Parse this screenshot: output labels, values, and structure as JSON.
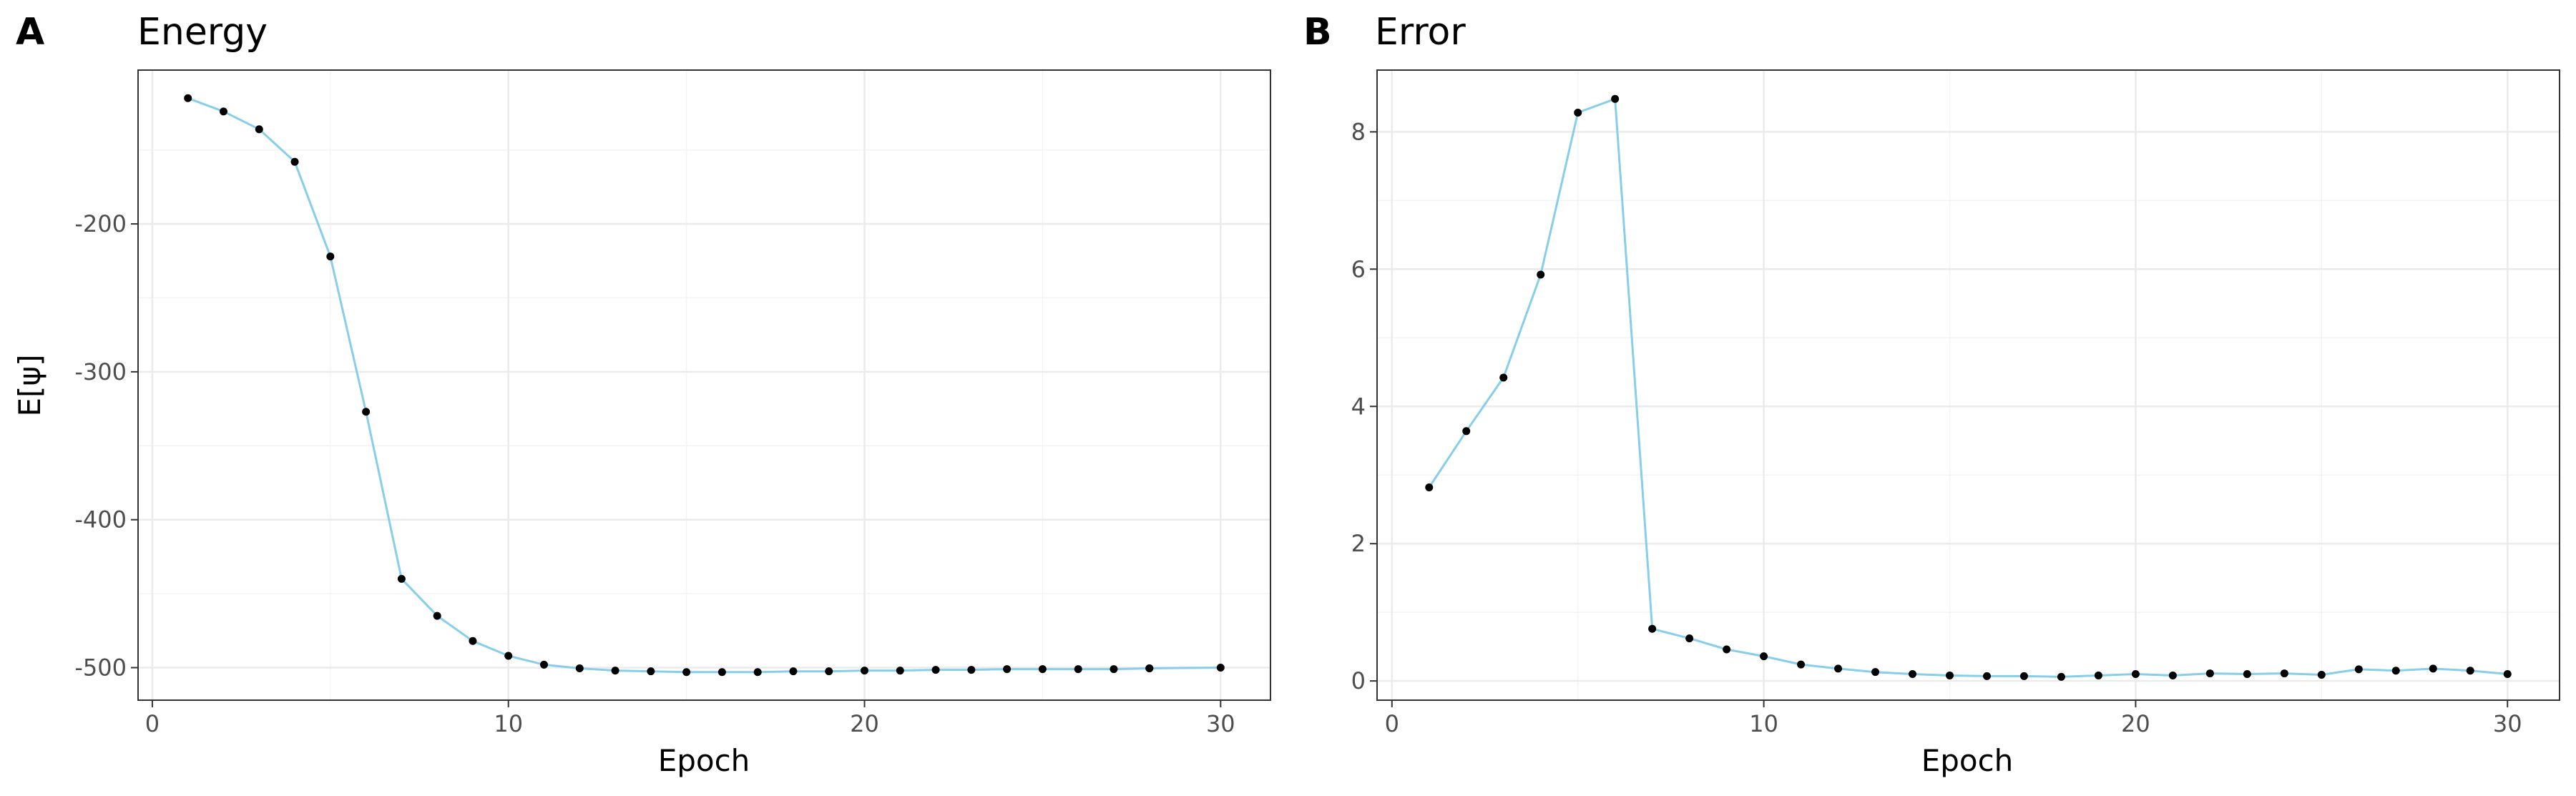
{
  "chart_data": [
    {
      "type": "line",
      "tag": "A",
      "title": "Energy",
      "xlabel": "Epoch",
      "ylabel": "E[ψ]",
      "xlim": [
        -0.4,
        31.4
      ],
      "ylim": [
        -522,
        -96
      ],
      "x_ticks": [
        0,
        10,
        20,
        30
      ],
      "y_ticks": [
        -500,
        -400,
        -300,
        -200
      ],
      "grid": true,
      "line_color": "#87CEEB",
      "point_color": "#000000",
      "x": [
        1,
        2,
        3,
        4,
        5,
        6,
        7,
        8,
        9,
        10,
        11,
        12,
        13,
        14,
        15,
        16,
        17,
        18,
        19,
        20,
        21,
        22,
        23,
        24,
        25,
        26,
        27,
        28,
        28,
        30
      ],
      "y": [
        -115,
        -124,
        -136,
        -158,
        -222,
        -327,
        -440,
        -465,
        -482,
        -492,
        -498,
        -500.5,
        -502,
        -502.5,
        -503,
        -503,
        -503,
        -502.5,
        -502.5,
        -502,
        -502,
        -501.5,
        -501.5,
        -501,
        -501,
        -501,
        -501,
        -500.5,
        -500.5,
        -500
      ]
    },
    {
      "type": "line",
      "tag": "B",
      "title": "Error",
      "xlabel": "Epoch",
      "ylabel": "",
      "xlim": [
        -0.4,
        31.4
      ],
      "ylim": [
        -0.28,
        8.9
      ],
      "x_ticks": [
        0,
        10,
        20,
        30
      ],
      "y_ticks": [
        0,
        2,
        4,
        6,
        8
      ],
      "grid": true,
      "line_color": "#87CEEB",
      "point_color": "#000000",
      "x": [
        1,
        2,
        3,
        4,
        5,
        6,
        7,
        8,
        9,
        10,
        11,
        12,
        13,
        14,
        15,
        16,
        17,
        18,
        19,
        20,
        21,
        22,
        23,
        24,
        25,
        26,
        27,
        28,
        29,
        30
      ],
      "y": [
        2.82,
        3.64,
        4.42,
        5.92,
        8.28,
        8.48,
        0.76,
        0.62,
        0.46,
        0.36,
        0.24,
        0.18,
        0.13,
        0.1,
        0.08,
        0.07,
        0.07,
        0.06,
        0.08,
        0.1,
        0.08,
        0.11,
        0.1,
        0.11,
        0.09,
        0.17,
        0.15,
        0.18,
        0.15,
        0.1
      ]
    }
  ]
}
